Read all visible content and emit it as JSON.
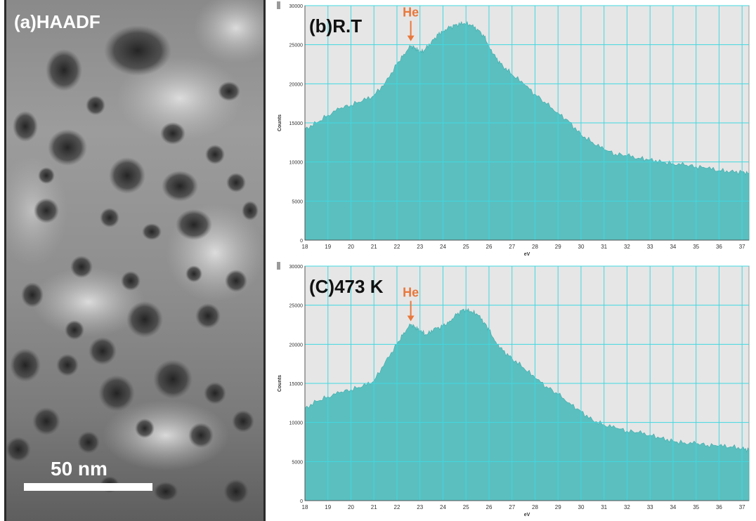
{
  "panel_a": {
    "label": "(a)HAADF",
    "scale_bar_label": "50 nm",
    "image_icon": "haadf-micrograph-picture"
  },
  "colors": {
    "fill": "#5bbfbf",
    "grid": "#40d8e0",
    "plot_bg": "#e6e6e6",
    "annotation": "#e8783c"
  },
  "chart_data": [
    {
      "type": "area",
      "title": "(b)R.T",
      "xlabel": "eV",
      "ylabel": "Counts",
      "xlim": [
        18,
        37.3
      ],
      "ylim": [
        0,
        30000
      ],
      "xticks": [
        "18",
        "19",
        "20",
        "21",
        "22",
        "23",
        "24",
        "25",
        "26",
        "27",
        "28",
        "29",
        "30",
        "31",
        "32",
        "33",
        "34",
        "35",
        "36",
        "37"
      ],
      "yticks": [
        "0",
        "5000",
        "10000",
        "15000",
        "20000",
        "25000",
        "30000"
      ],
      "grid": true,
      "annotation": {
        "text": "He",
        "x": 22.6,
        "y": 25000
      },
      "x": [
        18,
        18.5,
        19,
        19.5,
        20,
        20.5,
        21,
        21.5,
        22,
        22.3,
        22.6,
        22.8,
        23,
        23.2,
        23.5,
        23.8,
        24,
        24.3,
        24.6,
        24.9,
        25.2,
        25.5,
        25.8,
        26,
        26.3,
        26.6,
        27,
        27.5,
        28,
        28.5,
        29,
        29.5,
        30,
        30.5,
        31,
        31.5,
        32,
        32.5,
        33,
        33.5,
        34,
        34.5,
        35,
        35.5,
        36,
        36.5,
        37,
        37.3
      ],
      "values": [
        14200,
        15000,
        16000,
        16800,
        17300,
        17800,
        18500,
        20200,
        22500,
        23800,
        24800,
        24600,
        24000,
        24300,
        25400,
        26300,
        26800,
        27200,
        27600,
        27700,
        27500,
        27000,
        26000,
        24800,
        23300,
        22300,
        21200,
        20000,
        18700,
        17400,
        16300,
        15100,
        13500,
        12500,
        11600,
        11000,
        10800,
        10500,
        10300,
        10000,
        9800,
        9600,
        9400,
        9200,
        8900,
        8800,
        8700,
        8600
      ]
    },
    {
      "type": "area",
      "title": "(C)473 K",
      "xlabel": "eV",
      "ylabel": "Counts",
      "xlim": [
        18,
        37.3
      ],
      "ylim": [
        0,
        30000
      ],
      "xticks": [
        "18",
        "19",
        "20",
        "21",
        "22",
        "23",
        "24",
        "25",
        "26",
        "27",
        "28",
        "29",
        "30",
        "31",
        "32",
        "33",
        "34",
        "35",
        "36",
        "37"
      ],
      "yticks": [
        "0",
        "5000",
        "10000",
        "15000",
        "20000",
        "25000",
        "30000"
      ],
      "grid": true,
      "annotation": {
        "text": "He",
        "x": 22.6,
        "y": 22500
      },
      "x": [
        18,
        18.5,
        19,
        19.5,
        20,
        20.5,
        21,
        21.5,
        22,
        22.3,
        22.6,
        22.8,
        23,
        23.3,
        23.6,
        24,
        24.3,
        24.6,
        24.9,
        25.2,
        25.5,
        25.8,
        26,
        26.3,
        26.6,
        27,
        27.5,
        28,
        28.5,
        29,
        29.5,
        30,
        30.5,
        31,
        31.5,
        32,
        32.5,
        33,
        33.5,
        34,
        34.5,
        35,
        35.5,
        36,
        36.5,
        37,
        37.3
      ],
      "values": [
        11800,
        12700,
        13300,
        13800,
        14200,
        14600,
        15300,
        17800,
        20000,
        21500,
        22500,
        22200,
        21700,
        21200,
        22000,
        22300,
        23000,
        23800,
        24500,
        24200,
        23800,
        22800,
        21800,
        20300,
        19200,
        18200,
        17000,
        15700,
        14600,
        13600,
        12500,
        11400,
        10300,
        9700,
        9300,
        8900,
        8700,
        8400,
        8000,
        7600,
        7400,
        7300,
        7100,
        7000,
        6900,
        6700,
        6500
      ]
    }
  ]
}
